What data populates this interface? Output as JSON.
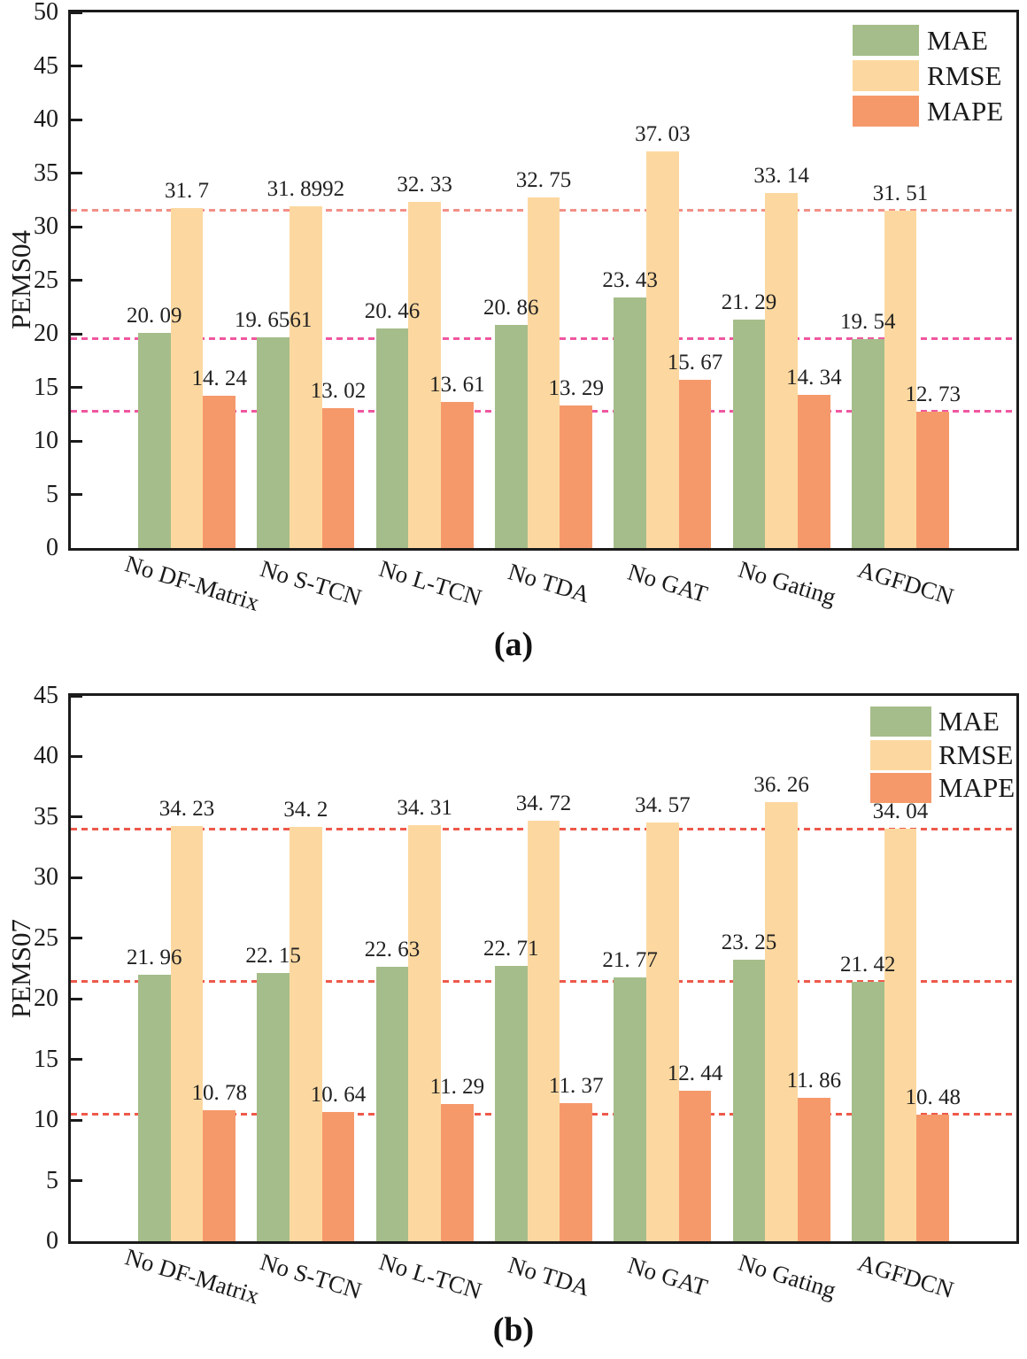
{
  "chart_data": [
    {
      "id": "a",
      "type": "bar",
      "caption": "(a)",
      "ylabel": "PEMS04",
      "ylim": [
        0,
        50
      ],
      "ytick_step": 5,
      "grid": false,
      "legend_position": "top-right",
      "categories": [
        "No DF-Matrix",
        "No S-TCN",
        "No L-TCN",
        "No TDA",
        "No GAT",
        "No Gating",
        "AGFDCN"
      ],
      "series": [
        {
          "name": "MAE",
          "color": "#a5bd8a",
          "values": [
            20.09,
            19.6561,
            20.46,
            20.86,
            23.43,
            21.29,
            19.54
          ],
          "labels": [
            "20. 09",
            "19. 6561",
            "20. 46",
            "20. 86",
            "23. 43",
            "21. 29",
            "19. 54"
          ]
        },
        {
          "name": "RMSE",
          "color": "#fcd8a0",
          "values": [
            31.7,
            31.8992,
            32.33,
            32.75,
            37.03,
            33.14,
            31.51
          ],
          "labels": [
            "31. 7",
            "31. 8992",
            "32. 33",
            "32. 75",
            "37. 03",
            "33. 14",
            "31. 51"
          ]
        },
        {
          "name": "MAPE",
          "color": "#f5996b",
          "values": [
            14.24,
            13.02,
            13.61,
            13.29,
            15.67,
            14.34,
            12.73
          ],
          "labels": [
            "14. 24",
            "13. 02",
            "13. 61",
            "13. 29",
            "15. 67",
            "14. 34",
            "12. 73"
          ]
        }
      ],
      "reference_lines": [
        {
          "value": 31.51,
          "color": "#f29087"
        },
        {
          "value": 19.54,
          "color": "#ef57a0"
        },
        {
          "value": 12.73,
          "color": "#ef57a0"
        }
      ]
    },
    {
      "id": "b",
      "type": "bar",
      "caption": "(b)",
      "ylabel": "PEMS07",
      "ylim": [
        0,
        45
      ],
      "ytick_step": 5,
      "grid": false,
      "legend_position": "top-right",
      "categories": [
        "No DF-Matrix",
        "No S-TCN",
        "No L-TCN",
        "No TDA",
        "No GAT",
        "No Gating",
        "AGFDCN"
      ],
      "series": [
        {
          "name": "MAE",
          "color": "#a5bd8a",
          "values": [
            21.96,
            22.15,
            22.63,
            22.71,
            21.77,
            23.25,
            21.42
          ],
          "labels": [
            "21. 96",
            "22. 15",
            "22. 63",
            "22. 71",
            "21. 77",
            "23. 25",
            "21. 42"
          ]
        },
        {
          "name": "RMSE",
          "color": "#fcd8a0",
          "values": [
            34.23,
            34.2,
            34.31,
            34.72,
            34.57,
            36.26,
            34.04
          ],
          "labels": [
            "34. 23",
            "34. 2",
            "34. 31",
            "34. 72",
            "34. 57",
            "36. 26",
            "34. 04"
          ]
        },
        {
          "name": "MAPE",
          "color": "#f5996b",
          "values": [
            10.78,
            10.64,
            11.29,
            11.37,
            12.44,
            11.86,
            10.48
          ],
          "labels": [
            "10. 78",
            "10. 64",
            "11. 29",
            "11. 37",
            "12. 44",
            "11. 86",
            "10. 48"
          ]
        }
      ],
      "reference_lines": [
        {
          "value": 34.04,
          "color": "#ee594b"
        },
        {
          "value": 21.42,
          "color": "#ee594b"
        },
        {
          "value": 10.48,
          "color": "#ee594b"
        }
      ]
    }
  ]
}
